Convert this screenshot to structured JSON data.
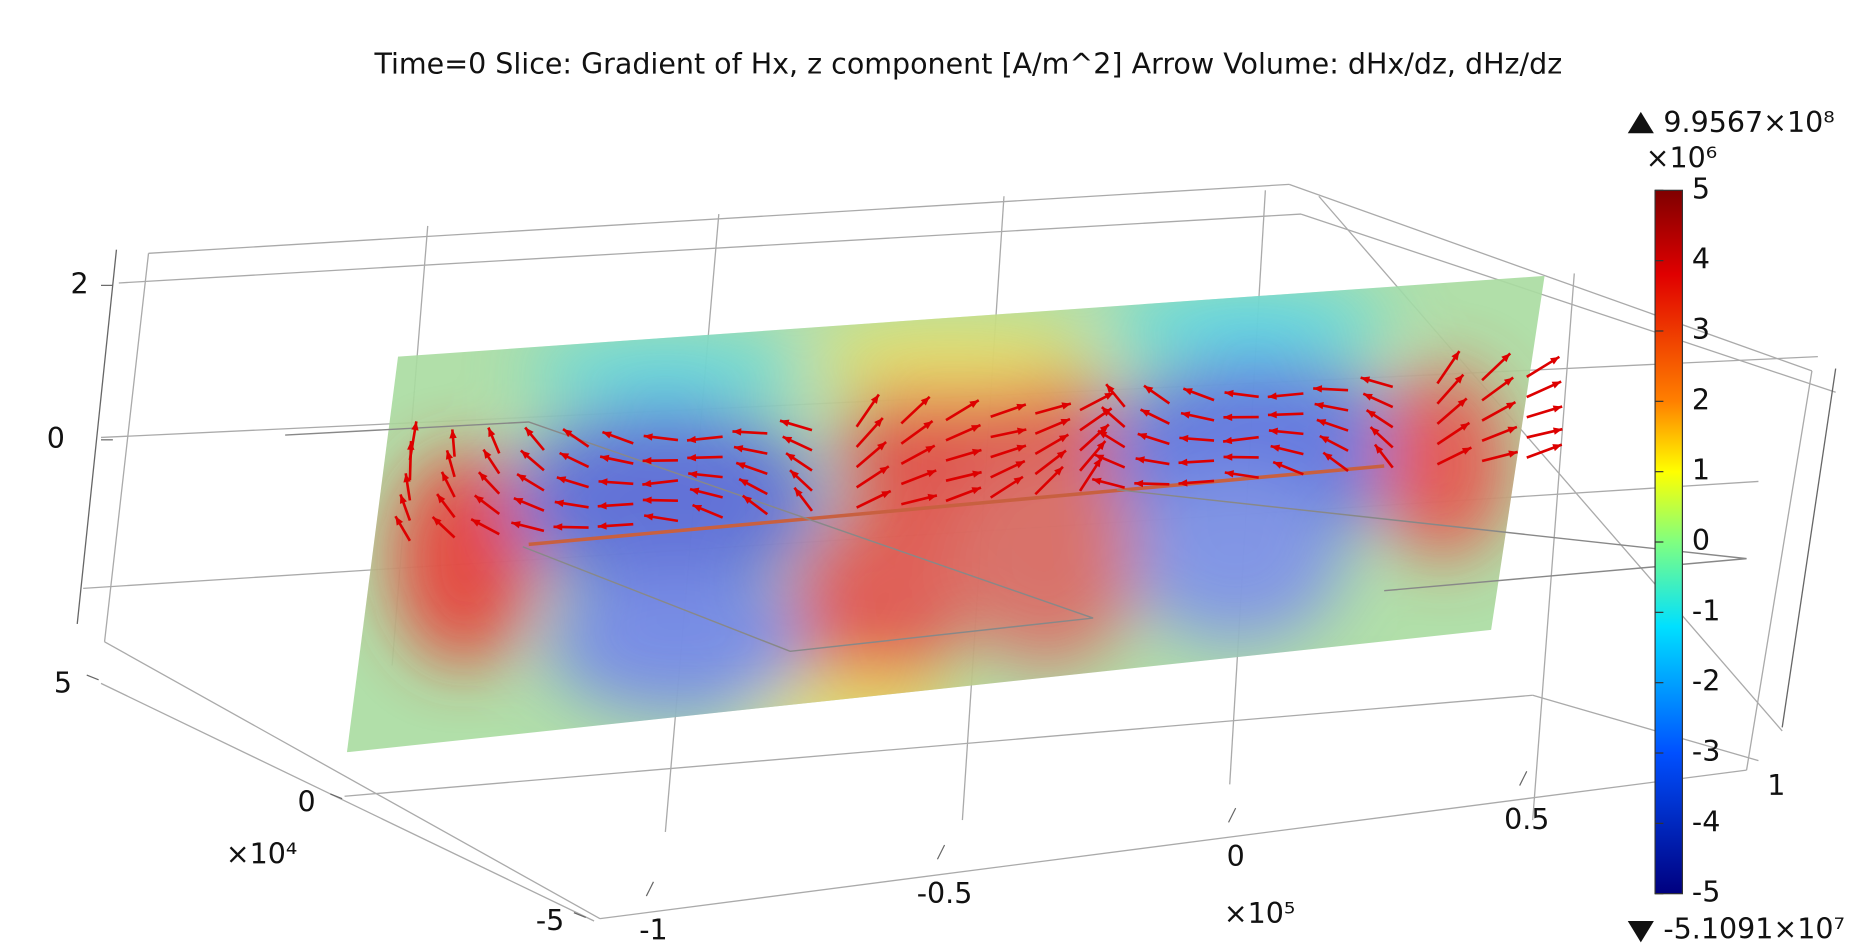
{
  "title": "Time=0   Slice: Gradient of Hx, z component [A/m^2]  Arrow Volume: dHx/dz, dHz/dz",
  "colorbar": {
    "max_label": "9.9567×10⁸",
    "min_label": "-5.1091×10⁷",
    "exponent": "×10⁶",
    "lim": [
      -5,
      5
    ],
    "ticks": [
      5,
      4,
      3,
      2,
      1,
      0,
      -1,
      -2,
      -3,
      -4,
      -5
    ]
  },
  "axes": {
    "x_ticks": [
      -1,
      -0.5,
      0,
      0.5
    ],
    "x_exponent": "×10⁵",
    "y_ticks": [
      -5,
      0,
      5
    ],
    "y_exponent": "×10⁴",
    "z_ticks": [
      0,
      2
    ],
    "side_tick": 1
  }
}
